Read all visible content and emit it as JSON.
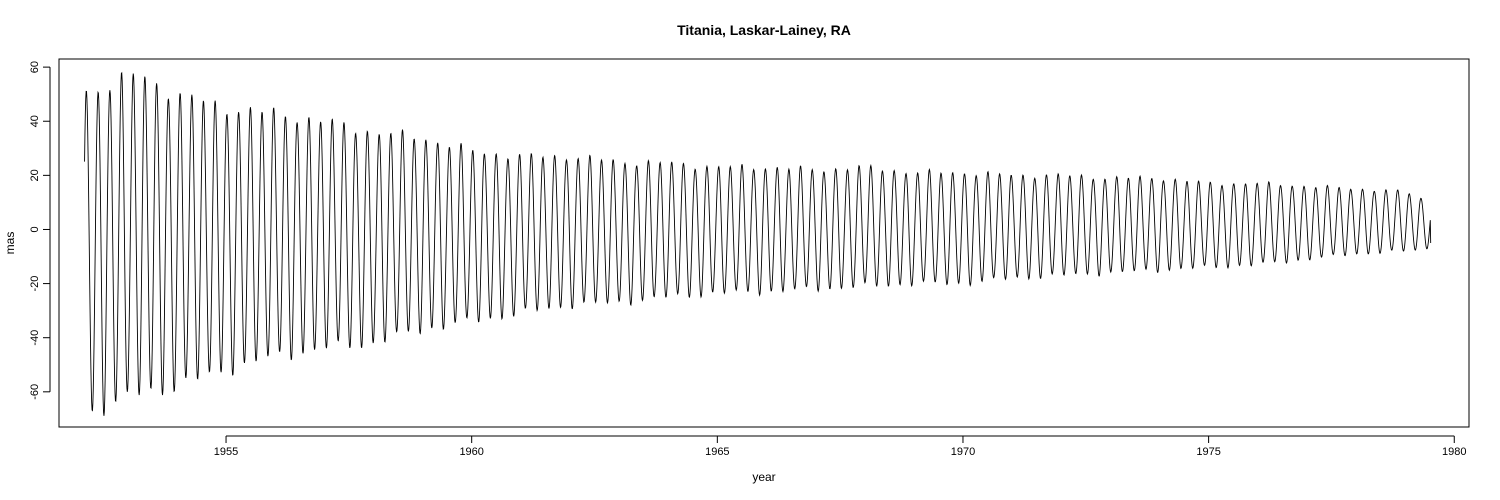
{
  "chart_data": {
    "type": "line",
    "title": "Titania, Laskar-Lainey, RA",
    "xlabel": "year",
    "ylabel": "mas",
    "xlim": [
      1951.6,
      1980.3
    ],
    "ylim": [
      -73,
      63
    ],
    "x_ticks": [
      1955,
      1960,
      1965,
      1970,
      1975,
      1980
    ],
    "y_ticks": [
      -60,
      -40,
      -20,
      0,
      20,
      40,
      60
    ],
    "grid": false,
    "legend": "none",
    "series": [
      {
        "line_color": "#000000",
        "x_start": 1952.12,
        "x_end": 1979.52,
        "period_years": 0.2383,
        "envelope": [
          {
            "x": 1952.2,
            "max": 51,
            "min": -68
          },
          {
            "x": 1953.2,
            "max": 57.5,
            "min": -61
          },
          {
            "x": 1954.0,
            "max": 50,
            "min": -58
          },
          {
            "x": 1955.0,
            "max": 45,
            "min": -52
          },
          {
            "x": 1956.0,
            "max": 43,
            "min": -47
          },
          {
            "x": 1957.0,
            "max": 40,
            "min": -44
          },
          {
            "x": 1958.0,
            "max": 36,
            "min": -42
          },
          {
            "x": 1959.0,
            "max": 34,
            "min": -37
          },
          {
            "x": 1960.0,
            "max": 29,
            "min": -34
          },
          {
            "x": 1961.0,
            "max": 27,
            "min": -31
          },
          {
            "x": 1962.0,
            "max": 27,
            "min": -28
          },
          {
            "x": 1963.0,
            "max": 25,
            "min": -27
          },
          {
            "x": 1964.0,
            "max": 24.5,
            "min": -25
          },
          {
            "x": 1965.0,
            "max": 23,
            "min": -23.5
          },
          {
            "x": 1966.0,
            "max": 23,
            "min": -23
          },
          {
            "x": 1967.0,
            "max": 22,
            "min": -22
          },
          {
            "x": 1968.0,
            "max": 23,
            "min": -21
          },
          {
            "x": 1969.0,
            "max": 21,
            "min": -20
          },
          {
            "x": 1970.0,
            "max": 21,
            "min": -20
          },
          {
            "x": 1971.0,
            "max": 20,
            "min": -18
          },
          {
            "x": 1972.0,
            "max": 20,
            "min": -17
          },
          {
            "x": 1973.0,
            "max": 19,
            "min": -16
          },
          {
            "x": 1974.0,
            "max": 19,
            "min": -15
          },
          {
            "x": 1975.0,
            "max": 17,
            "min": -14
          },
          {
            "x": 1976.0,
            "max": 17,
            "min": -13
          },
          {
            "x": 1977.0,
            "max": 16,
            "min": -11
          },
          {
            "x": 1978.0,
            "max": 15,
            "min": -9
          },
          {
            "x": 1979.0,
            "max": 14,
            "min": -8
          },
          {
            "x": 1979.5,
            "max": 10,
            "min": -7
          }
        ],
        "first_value": 23.5,
        "last_value": -5
      }
    ]
  }
}
